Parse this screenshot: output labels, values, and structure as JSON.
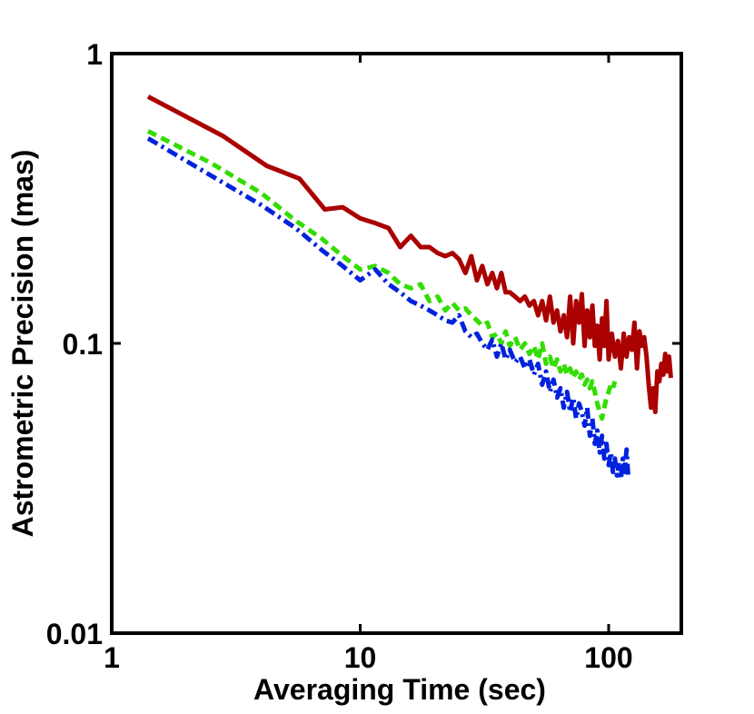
{
  "chart_data": {
    "type": "line",
    "xscale": "log",
    "yscale": "log",
    "xlabel": "Averaging Time (sec)",
    "ylabel": "Astrometric Precision (mas)",
    "xlim": [
      1,
      230
    ],
    "ylim": [
      0.01,
      1
    ],
    "xticks": [
      {
        "value": 1,
        "label": "1"
      },
      {
        "value": 10,
        "label": "10"
      },
      {
        "value": 100,
        "label": "100"
      }
    ],
    "yticks": [
      {
        "value": 0.01,
        "label": "0.01"
      },
      {
        "value": 0.1,
        "label": "0.1"
      },
      {
        "value": 1,
        "label": "1"
      }
    ],
    "grid": false,
    "series": [
      {
        "name": "red-solid",
        "color": "#aa0000",
        "dash": "solid",
        "x": [
          1.4,
          2.8,
          4.2,
          5.7,
          7.2,
          8.5,
          10.0,
          11.5,
          13.0,
          14.5,
          16.0,
          17.5,
          19.0,
          20.5,
          22.0,
          23.5,
          25.0,
          26.5,
          28.0,
          29.5,
          31.0,
          32.5,
          34.0,
          35.5,
          37.0,
          38.5,
          40.0,
          42.0,
          44.0,
          46.0,
          48.0,
          50.0,
          52.0,
          54.0,
          56.0,
          58.0,
          60.0,
          62.0,
          64.0,
          66.0,
          68.0,
          70.0,
          72.0,
          74.0,
          76.0,
          78.0,
          80.0,
          82.0,
          84.0,
          86.0,
          88.0,
          90.0,
          92.0,
          94.0,
          96.0,
          98.0,
          100.0,
          103.0,
          106.0,
          109.0,
          112.0,
          115.0,
          118.0,
          121.0,
          124.0,
          127.0,
          130.0,
          133.0,
          136.0,
          139.0,
          142.0,
          145.0,
          148.0,
          151.0,
          154.0,
          157.0,
          160.0,
          163.0,
          166.0,
          169.0,
          172.0,
          175.0,
          178.0
        ],
        "y": [
          0.71,
          0.52,
          0.41,
          0.37,
          0.29,
          0.295,
          0.27,
          0.26,
          0.25,
          0.215,
          0.235,
          0.215,
          0.215,
          0.205,
          0.2,
          0.205,
          0.195,
          0.175,
          0.2,
          0.165,
          0.185,
          0.16,
          0.175,
          0.155,
          0.175,
          0.15,
          0.15,
          0.145,
          0.14,
          0.145,
          0.135,
          0.14,
          0.125,
          0.14,
          0.12,
          0.145,
          0.118,
          0.13,
          0.11,
          0.125,
          0.105,
          0.145,
          0.1,
          0.14,
          0.118,
          0.148,
          0.098,
          0.13,
          0.105,
          0.135,
          0.098,
          0.115,
          0.088,
          0.122,
          0.098,
          0.14,
          0.088,
          0.108,
          0.09,
          0.102,
          0.082,
          0.108,
          0.09,
          0.105,
          0.095,
          0.118,
          0.082,
          0.11,
          0.098,
          0.105,
          0.09,
          0.072,
          0.06,
          0.07,
          0.058,
          0.08,
          0.074,
          0.085,
          0.078,
          0.092,
          0.08,
          0.09,
          0.076
        ]
      },
      {
        "name": "green-dashed",
        "color": "#33dd00",
        "dash": "dashed",
        "x": [
          1.4,
          2.5,
          4.0,
          5.5,
          7.0,
          8.5,
          10.0,
          11.5,
          13.0,
          14.5,
          16.0,
          17.5,
          19.0,
          20.5,
          22.0,
          23.5,
          25.0,
          26.5,
          28.0,
          29.5,
          31.0,
          32.5,
          34.0,
          35.5,
          37.0,
          38.5,
          40.0,
          42.0,
          44.0,
          46.0,
          48.0,
          50.0,
          52.0,
          54.0,
          56.0,
          58.0,
          60.0,
          62.0,
          64.0,
          66.0,
          68.0,
          70.0,
          72.0,
          74.0,
          76.0,
          78.0,
          80.0,
          82.0,
          84.0,
          86.0,
          88.0,
          90.0,
          92.0,
          94.0,
          96.0,
          98.0,
          100.0,
          102.0,
          104.0,
          106.0
        ],
        "y": [
          0.54,
          0.42,
          0.33,
          0.265,
          0.23,
          0.2,
          0.18,
          0.185,
          0.175,
          0.16,
          0.155,
          0.16,
          0.14,
          0.145,
          0.13,
          0.138,
          0.13,
          0.132,
          0.125,
          0.12,
          0.115,
          0.118,
          0.105,
          0.108,
          0.1,
          0.11,
          0.098,
          0.105,
          0.095,
          0.1,
          0.092,
          0.098,
          0.088,
          0.1,
          0.085,
          0.09,
          0.082,
          0.088,
          0.08,
          0.085,
          0.078,
          0.082,
          0.076,
          0.08,
          0.075,
          0.078,
          0.072,
          0.075,
          0.07,
          0.074,
          0.068,
          0.062,
          0.058,
          0.055,
          0.06,
          0.065,
          0.068,
          0.072,
          0.07,
          0.074
        ]
      },
      {
        "name": "blue-dashdot",
        "color": "#0022dd",
        "dash": "dashdot",
        "x": [
          1.4,
          2.5,
          4.0,
          5.5,
          7.0,
          8.5,
          10.0,
          11.5,
          13.0,
          14.5,
          16.0,
          17.5,
          19.0,
          20.5,
          22.0,
          23.5,
          25.0,
          26.5,
          28.0,
          29.5,
          31.0,
          32.5,
          34.0,
          35.5,
          37.0,
          38.5,
          40.0,
          42.0,
          44.0,
          46.0,
          48.0,
          50.0,
          52.0,
          54.0,
          56.0,
          58.0,
          60.0,
          62.0,
          64.0,
          66.0,
          68.0,
          70.0,
          72.0,
          74.0,
          76.0,
          78.0,
          80.0,
          82.0,
          84.0,
          86.0,
          88.0,
          90.0,
          92.0,
          94.0,
          96.0,
          98.0,
          100.0,
          102.0,
          104.0,
          106.0,
          108.0,
          110.0,
          112.0,
          114.0,
          116.0,
          118.0,
          120.0
        ],
        "y": [
          0.51,
          0.38,
          0.3,
          0.25,
          0.21,
          0.185,
          0.165,
          0.18,
          0.16,
          0.15,
          0.14,
          0.135,
          0.13,
          0.125,
          0.12,
          0.118,
          0.125,
          0.11,
          0.105,
          0.108,
          0.1,
          0.095,
          0.103,
          0.09,
          0.1,
          0.088,
          0.095,
          0.086,
          0.09,
          0.082,
          0.088,
          0.078,
          0.085,
          0.072,
          0.08,
          0.068,
          0.075,
          0.065,
          0.07,
          0.06,
          0.068,
          0.058,
          0.065,
          0.055,
          0.062,
          0.058,
          0.052,
          0.06,
          0.048,
          0.055,
          0.045,
          0.05,
          0.042,
          0.048,
          0.04,
          0.045,
          0.038,
          0.042,
          0.036,
          0.04,
          0.035,
          0.038,
          0.034,
          0.04,
          0.036,
          0.043,
          0.034
        ]
      }
    ]
  }
}
